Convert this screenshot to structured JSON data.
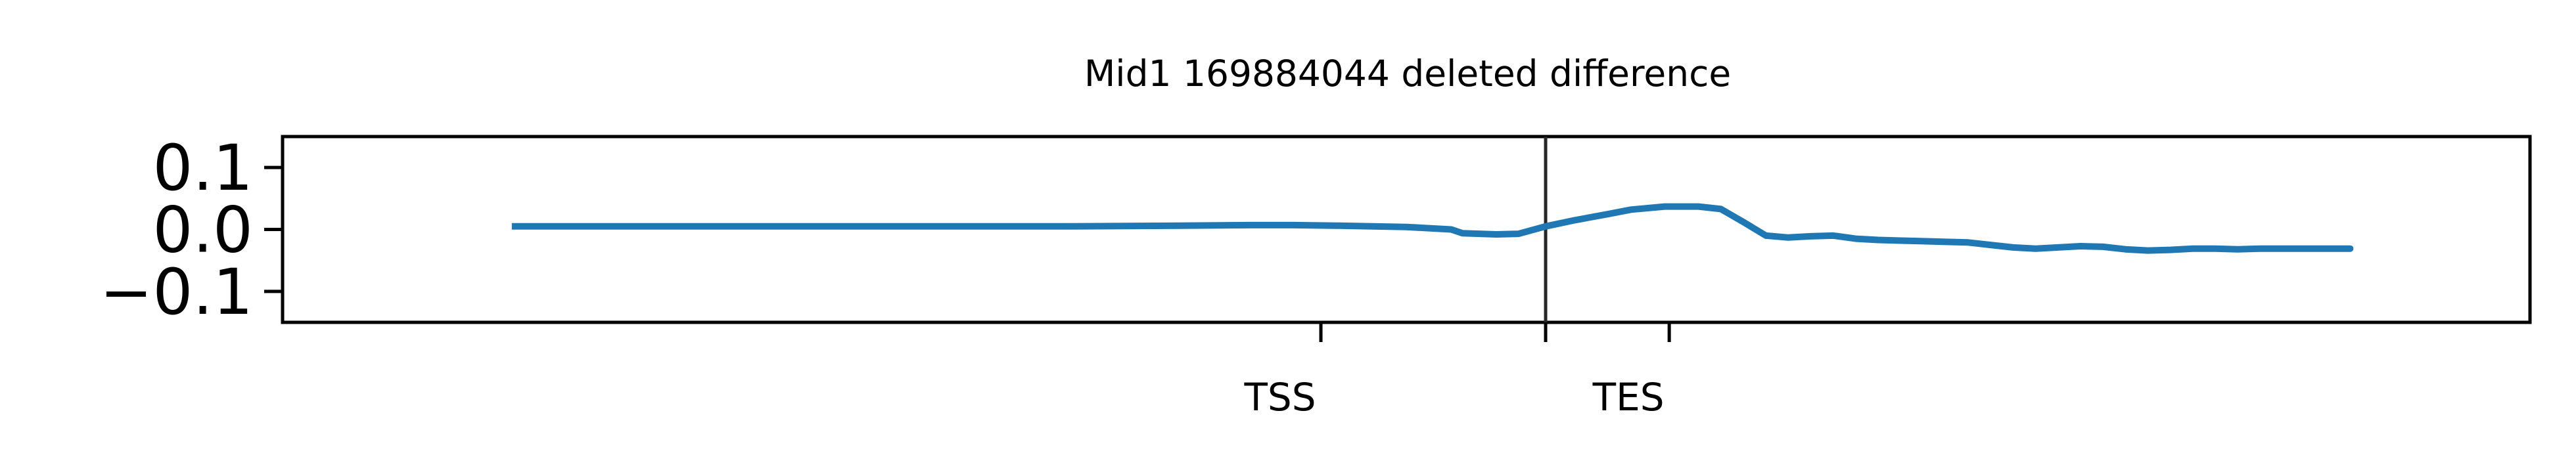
{
  "chart_data": {
    "type": "line",
    "title": "Mid1 169884044 deleted difference",
    "xlabel": "",
    "ylabel": "",
    "xlim": [
      0,
      1
    ],
    "ylim": [
      -0.15,
      0.15
    ],
    "yticks": [
      0.1,
      0.0,
      -0.1
    ],
    "ytick_labels": [
      "0.1",
      "0.0",
      "−0.1"
    ],
    "xticks": [
      {
        "label": "TSS",
        "x": 0.462
      },
      {
        "label": "",
        "x": 0.562
      },
      {
        "label": "TES",
        "x": 0.617
      }
    ],
    "vline_x": 0.562,
    "grid": false,
    "series": [
      {
        "color": "#1f77b4",
        "x": [
          0.102,
          0.15,
          0.2,
          0.25,
          0.3,
          0.35,
          0.4,
          0.43,
          0.45,
          0.47,
          0.5,
          0.52,
          0.525,
          0.54,
          0.55,
          0.562,
          0.575,
          0.59,
          0.6,
          0.615,
          0.63,
          0.64,
          0.65,
          0.66,
          0.67,
          0.68,
          0.69,
          0.7,
          0.71,
          0.72,
          0.73,
          0.74,
          0.75,
          0.76,
          0.77,
          0.78,
          0.79,
          0.8,
          0.81,
          0.82,
          0.83,
          0.84,
          0.85,
          0.86,
          0.87,
          0.88,
          0.89,
          0.9,
          0.91,
          0.92,
          0.9
        ],
        "y": [
          0.005,
          0.005,
          0.005,
          0.005,
          0.005,
          0.005,
          0.006,
          0.007,
          0.007,
          0.006,
          0.004,
          0.0,
          -0.006,
          -0.008,
          -0.007,
          0.005,
          0.015,
          0.025,
          0.032,
          0.037,
          0.037,
          0.033,
          0.012,
          -0.01,
          -0.013,
          -0.011,
          -0.01,
          -0.015,
          -0.017,
          -0.018,
          -0.019,
          -0.02,
          -0.021,
          -0.025,
          -0.029,
          -0.031,
          -0.029,
          -0.027,
          -0.028,
          -0.032,
          -0.034,
          -0.033,
          -0.031,
          -0.031,
          -0.032,
          -0.031,
          -0.031,
          -0.031,
          -0.031,
          -0.031,
          -0.031
        ]
      }
    ]
  }
}
